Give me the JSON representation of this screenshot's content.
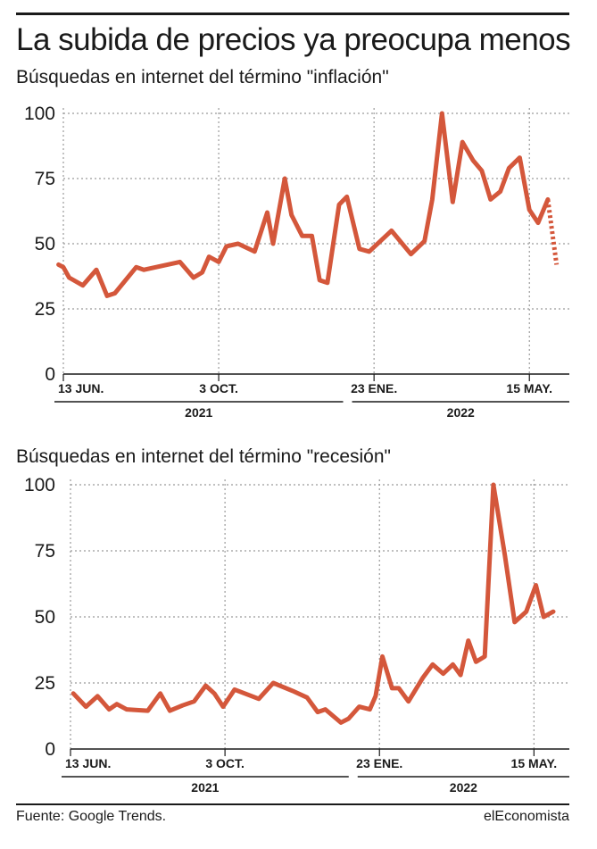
{
  "header": {
    "title": "La subida de precios ya preocupa menos"
  },
  "colors": {
    "line": "#d4573b",
    "grid": "#9a9a9a",
    "text": "#1a1a1a"
  },
  "chart_data": [
    {
      "type": "line",
      "title": "Búsquedas en internet del término \"inflación\"",
      "ylim": [
        0,
        100
      ],
      "yticks": [
        0,
        25,
        50,
        75,
        100
      ],
      "x_range": [
        0,
        50
      ],
      "xtick_labels": [
        {
          "label": "13 JUN.",
          "x": 0
        },
        {
          "label": "3 OCT.",
          "x": 16
        },
        {
          "label": "23 ENE.",
          "x": 32
        },
        {
          "label": "15 MAY.",
          "x": 48
        }
      ],
      "year_labels": [
        {
          "label": "2021",
          "from": 0,
          "to": 29
        },
        {
          "label": "2022",
          "from": 29,
          "to": 50
        }
      ],
      "grid": true,
      "series": [
        {
          "values": [
            [
              -0.5,
              42
            ],
            [
              0,
              41
            ],
            [
              0.6,
              37
            ],
            [
              2,
              34
            ],
            [
              3.4,
              40
            ],
            [
              4.5,
              30
            ],
            [
              5.3,
              31
            ],
            [
              7.5,
              41
            ],
            [
              8.3,
              40
            ],
            [
              12,
              43
            ],
            [
              13.4,
              37
            ],
            [
              14.3,
              39
            ],
            [
              15,
              45
            ],
            [
              16,
              43
            ],
            [
              16.8,
              49
            ],
            [
              18,
              50
            ],
            [
              19.7,
              47
            ],
            [
              21,
              62
            ],
            [
              21.6,
              50
            ],
            [
              22.8,
              75
            ],
            [
              23.5,
              61
            ],
            [
              24.6,
              53
            ],
            [
              25.6,
              53
            ],
            [
              26.4,
              36
            ],
            [
              27.2,
              35
            ],
            [
              28.4,
              65
            ],
            [
              29.2,
              68
            ],
            [
              30.5,
              48
            ],
            [
              31.5,
              47
            ],
            [
              33.8,
              55
            ],
            [
              35.8,
              46
            ],
            [
              37.2,
              51
            ],
            [
              38,
              67
            ],
            [
              39,
              100
            ],
            [
              40.1,
              66
            ],
            [
              41.1,
              89
            ],
            [
              42.2,
              82
            ],
            [
              43.1,
              78
            ],
            [
              44,
              67
            ],
            [
              45,
              70
            ],
            [
              45.9,
              79
            ],
            [
              47,
              83
            ],
            [
              48,
              63
            ],
            [
              48.9,
              58
            ],
            [
              49.9,
              67
            ]
          ]
        },
        {
          "style": "dotted",
          "values": [
            [
              49.9,
              67
            ],
            [
              50.8,
              42
            ]
          ]
        }
      ]
    },
    {
      "type": "line",
      "title": "Búsquedas en internet del término \"recesión\"",
      "ylim": [
        0,
        100
      ],
      "yticks": [
        0,
        25,
        50,
        75,
        100
      ],
      "x_range": [
        0,
        50
      ],
      "xtick_labels": [
        {
          "label": "13 JUN.",
          "x": 0
        },
        {
          "label": "3 OCT.",
          "x": 16
        },
        {
          "label": "23 ENE.",
          "x": 32
        },
        {
          "label": "15 MAY.",
          "x": 48
        }
      ],
      "year_labels": [
        {
          "label": "2021",
          "from": 0,
          "to": 29
        },
        {
          "label": "2022",
          "from": 29,
          "to": 50
        }
      ],
      "grid": true,
      "series": [
        {
          "values": [
            [
              0.3,
              21
            ],
            [
              1.6,
              16
            ],
            [
              2.8,
              20
            ],
            [
              4,
              15
            ],
            [
              4.8,
              17
            ],
            [
              5.8,
              15
            ],
            [
              8,
              14.5
            ],
            [
              9.3,
              21
            ],
            [
              10.3,
              14.5
            ],
            [
              11.6,
              16.5
            ],
            [
              12.8,
              18
            ],
            [
              14,
              24
            ],
            [
              14.9,
              21
            ],
            [
              15.8,
              16
            ],
            [
              17,
              22.5
            ],
            [
              19.5,
              19
            ],
            [
              21,
              25
            ],
            [
              23,
              22
            ],
            [
              24.5,
              19.5
            ],
            [
              25.6,
              14
            ],
            [
              26.4,
              15
            ],
            [
              28,
              10
            ],
            [
              28.8,
              11.5
            ],
            [
              29.9,
              16
            ],
            [
              31,
              15
            ],
            [
              31.6,
              20
            ],
            [
              32.3,
              35
            ],
            [
              33.3,
              23
            ],
            [
              34,
              23
            ],
            [
              35,
              18
            ],
            [
              36.5,
              27
            ],
            [
              37.5,
              32
            ],
            [
              38.6,
              28.5
            ],
            [
              39.6,
              32
            ],
            [
              40.4,
              28
            ],
            [
              41.2,
              41
            ],
            [
              42,
              33
            ],
            [
              42.9,
              35
            ],
            [
              43.8,
              100
            ],
            [
              45,
              73
            ],
            [
              46,
              48
            ],
            [
              47.2,
              52
            ],
            [
              48.2,
              62
            ],
            [
              49,
              50
            ],
            [
              50,
              52
            ]
          ]
        }
      ]
    }
  ],
  "footer": {
    "source": "Fuente: Google Trends.",
    "brand": "elEconomista"
  }
}
